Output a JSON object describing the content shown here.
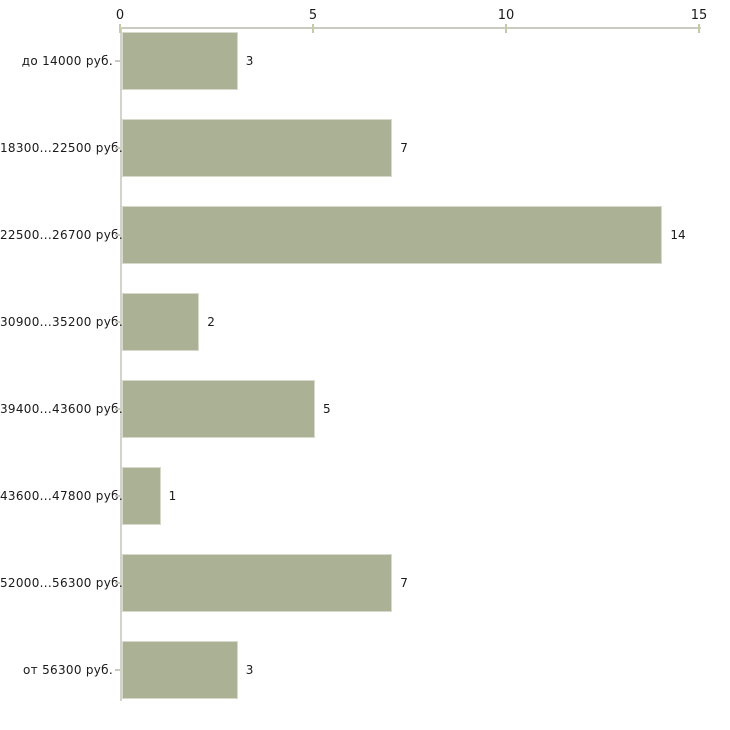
{
  "chart_data": {
    "type": "bar",
    "orientation": "horizontal",
    "title": "",
    "xlabel": "",
    "ylabel": "",
    "categories": [
      "до 14000 руб.",
      "18300...22500 руб.",
      "22500...26700 руб.",
      "30900...35200 руб.",
      "39400...43600 руб.",
      "43600...47800 руб.",
      "52000...56300 руб.",
      "от 56300 руб."
    ],
    "values": [
      3,
      7,
      14,
      2,
      5,
      1,
      7,
      3
    ],
    "value_labels": [
      "3",
      "7",
      "14",
      "2",
      "5",
      "1",
      "7",
      "3"
    ],
    "xlim": [
      0,
      15
    ],
    "x_ticks": [
      "0",
      "5",
      "10",
      "15"
    ],
    "x_tick_values": [
      0,
      5,
      10,
      15
    ],
    "axis_position": "top",
    "grid": false,
    "legend": null,
    "colors": {
      "bar_fill": "#abb194",
      "bar_border": "#d7d9cd",
      "axis_line": "#c9cac0",
      "tick_mark": "#c8c9a9",
      "text": "#1a1a1a",
      "background": "#ffffff"
    }
  }
}
